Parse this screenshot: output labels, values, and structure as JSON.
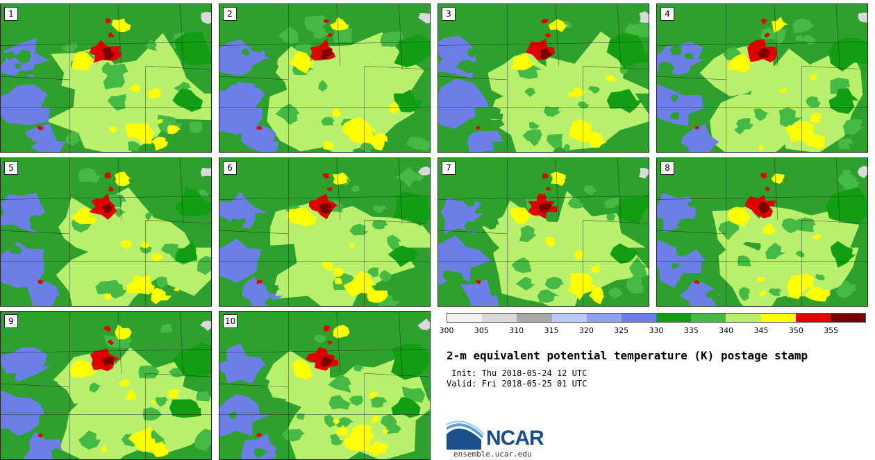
{
  "panels": [
    {
      "label": "1"
    },
    {
      "label": "2"
    },
    {
      "label": "3"
    },
    {
      "label": "4"
    },
    {
      "label": "5"
    },
    {
      "label": "6"
    },
    {
      "label": "7"
    },
    {
      "label": "8"
    },
    {
      "label": "9"
    },
    {
      "label": "10"
    }
  ],
  "colorbar": {
    "ticks": [
      "300",
      "305",
      "310",
      "315",
      "320",
      "325",
      "330",
      "335",
      "340",
      "345",
      "350",
      "355"
    ],
    "colors": [
      "#f2f2f2",
      "#d9d9d9",
      "#a8a8a8",
      "#b9c9fa",
      "#8ea2f2",
      "#6b7fe6",
      "#129e12",
      "#44b944",
      "#b8f06e",
      "#ffff00",
      "#e00000",
      "#7a0000"
    ]
  },
  "title": "2-m equivalent potential temperature (K) postage stamp",
  "init": " Init: Thu 2018-05-24 12 UTC",
  "valid": "Valid: Fri 2018-05-25 01 UTC",
  "logo": {
    "text": "NCAR",
    "site": "ensemble.ucar.edu"
  }
}
